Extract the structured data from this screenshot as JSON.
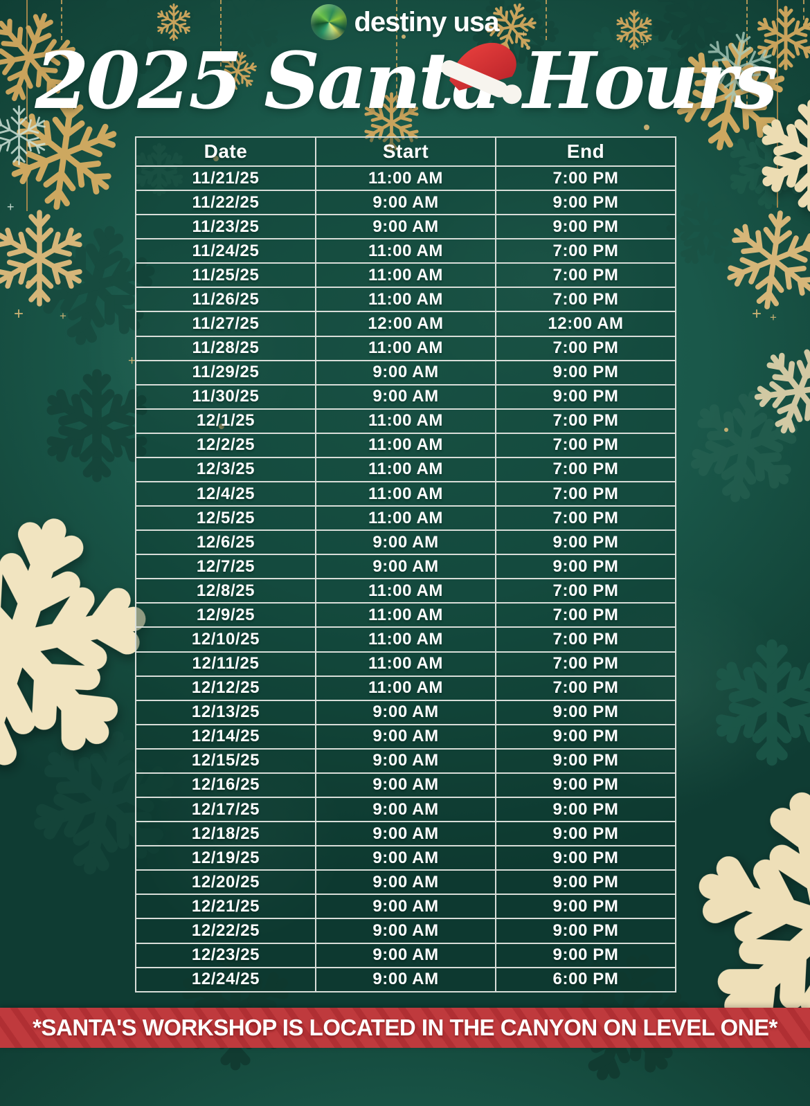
{
  "logo": {
    "text": "destiny usa",
    "icon": "globe-icon"
  },
  "title": {
    "text": "2025 Santa Hours"
  },
  "table": {
    "headers": [
      "Date",
      "Start",
      "End"
    ],
    "rows": [
      [
        "11/21/25",
        "11:00 AM",
        "7:00 PM"
      ],
      [
        "11/22/25",
        "9:00 AM",
        "9:00 PM"
      ],
      [
        "11/23/25",
        "9:00 AM",
        "9:00 PM"
      ],
      [
        "11/24/25",
        "11:00 AM",
        "7:00 PM"
      ],
      [
        "11/25/25",
        "11:00 AM",
        "7:00 PM"
      ],
      [
        "11/26/25",
        "11:00 AM",
        "7:00 PM"
      ],
      [
        "11/27/25",
        "12:00 AM",
        "12:00 AM"
      ],
      [
        "11/28/25",
        "11:00 AM",
        "7:00 PM"
      ],
      [
        "11/29/25",
        "9:00 AM",
        "9:00 PM"
      ],
      [
        "11/30/25",
        "9:00 AM",
        "9:00 PM"
      ],
      [
        "12/1/25",
        "11:00 AM",
        "7:00 PM"
      ],
      [
        "12/2/25",
        "11:00 AM",
        "7:00 PM"
      ],
      [
        "12/3/25",
        "11:00 AM",
        "7:00 PM"
      ],
      [
        "12/4/25",
        "11:00 AM",
        "7:00 PM"
      ],
      [
        "12/5/25",
        "11:00 AM",
        "7:00 PM"
      ],
      [
        "12/6/25",
        "9:00 AM",
        "9:00 PM"
      ],
      [
        "12/7/25",
        "9:00 AM",
        "9:00 PM"
      ],
      [
        "12/8/25",
        "11:00 AM",
        "7:00 PM"
      ],
      [
        "12/9/25",
        "11:00 AM",
        "7:00 PM"
      ],
      [
        "12/10/25",
        "11:00 AM",
        "7:00 PM"
      ],
      [
        "12/11/25",
        "11:00 AM",
        "7:00 PM"
      ],
      [
        "12/12/25",
        "11:00 AM",
        "7:00 PM"
      ],
      [
        "12/13/25",
        "9:00 AM",
        "9:00 PM"
      ],
      [
        "12/14/25",
        "9:00 AM",
        "9:00 PM"
      ],
      [
        "12/15/25",
        "9:00 AM",
        "9:00 PM"
      ],
      [
        "12/16/25",
        "9:00 AM",
        "9:00 PM"
      ],
      [
        "12/17/25",
        "9:00 AM",
        "9:00 PM"
      ],
      [
        "12/18/25",
        "9:00 AM",
        "9:00 PM"
      ],
      [
        "12/19/25",
        "9:00 AM",
        "9:00 PM"
      ],
      [
        "12/20/25",
        "9:00 AM",
        "9:00 PM"
      ],
      [
        "12/21/25",
        "9:00 AM",
        "9:00 PM"
      ],
      [
        "12/22/25",
        "9:00 AM",
        "9:00 PM"
      ],
      [
        "12/23/25",
        "9:00 AM",
        "9:00 PM"
      ],
      [
        "12/24/25",
        "9:00 AM",
        "6:00 PM"
      ]
    ]
  },
  "banner": {
    "text": "*SANTA'S WORKSHOP IS LOCATED IN THE CANYON ON LEVEL ONE*"
  },
  "icons": {
    "logo": "globe-icon",
    "hat": "santa-hat-icon",
    "decoration": "snowflake-icon",
    "sparkle": "sparkle-icon"
  },
  "colors": {
    "background_green": "#1a584a",
    "table_cell_green": "#1d5748",
    "table_border": "#d9ded9",
    "gold": "#c9a35c",
    "cream": "#f0e2bd",
    "banner_red": "#bf3a3d",
    "banner_stripe": "#b02f33",
    "hat_red": "#d93b35",
    "text_white": "#ffffff"
  }
}
